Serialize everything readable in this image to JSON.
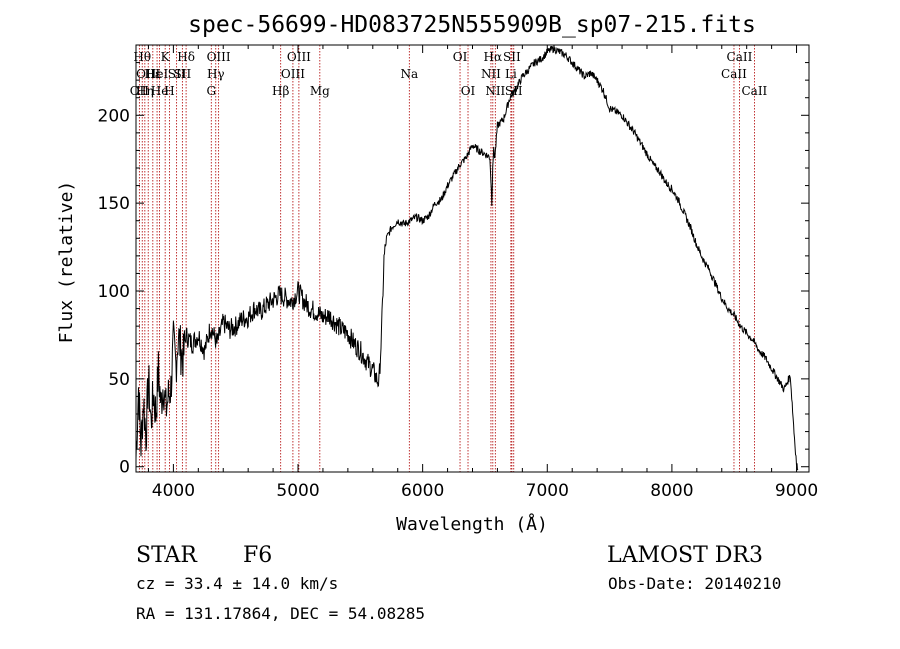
{
  "chart_data": {
    "type": "line",
    "title": "spec-56699-HD083725N555909B_sp07-215.fits",
    "xlabel": "Wavelength (Å)",
    "ylabel": "Flux (relative)",
    "xlim": [
      3700,
      9100
    ],
    "ylim": [
      -3,
      240
    ],
    "xticks": [
      4000,
      5000,
      6000,
      7000,
      8000,
      9000
    ],
    "yticks": [
      0,
      50,
      100,
      150,
      200
    ],
    "series": [
      {
        "name": "flux",
        "x": [
          3700,
          3720,
          3740,
          3760,
          3780,
          3800,
          3820,
          3840,
          3860,
          3880,
          3900,
          3920,
          3940,
          3960,
          3980,
          4000,
          4020,
          4040,
          4060,
          4080,
          4100,
          4150,
          4200,
          4250,
          4300,
          4350,
          4400,
          4450,
          4500,
          4550,
          4600,
          4650,
          4700,
          4750,
          4800,
          4850,
          4900,
          4950,
          5000,
          5050,
          5100,
          5150,
          5200,
          5250,
          5300,
          5350,
          5400,
          5450,
          5500,
          5550,
          5600,
          5630,
          5650,
          5670,
          5690,
          5710,
          5750,
          5800,
          5850,
          5900,
          5950,
          6000,
          6050,
          6100,
          6150,
          6200,
          6250,
          6300,
          6350,
          6400,
          6450,
          6500,
          6540,
          6555,
          6562,
          6570,
          6580,
          6600,
          6650,
          6700,
          6750,
          6800,
          6850,
          6900,
          6950,
          7000,
          7050,
          7100,
          7150,
          7200,
          7250,
          7300,
          7350,
          7400,
          7450,
          7500,
          7550,
          7600,
          7650,
          7700,
          7750,
          7800,
          7850,
          7900,
          7950,
          8000,
          8050,
          8100,
          8150,
          8200,
          8250,
          8300,
          8350,
          8400,
          8450,
          8500,
          8550,
          8600,
          8650,
          8700,
          8750,
          8800,
          8850,
          8900,
          8950,
          8980,
          9000,
          9010
        ],
        "y": [
          5,
          45,
          12,
          38,
          18,
          50,
          25,
          42,
          30,
          55,
          35,
          48,
          32,
          40,
          45,
          70,
          58,
          75,
          66,
          62,
          75,
          70,
          75,
          66,
          80,
          70,
          82,
          78,
          80,
          84,
          85,
          90,
          88,
          92,
          95,
          98,
          96,
          94,
          100,
          94,
          90,
          88,
          85,
          86,
          82,
          78,
          76,
          70,
          66,
          60,
          55,
          50,
          48,
          75,
          118,
          130,
          136,
          140,
          138,
          140,
          142,
          140,
          143,
          150,
          152,
          160,
          166,
          172,
          176,
          183,
          180,
          178,
          176,
          150,
          172,
          180,
          176,
          194,
          198,
          210,
          215,
          222,
          226,
          230,
          232,
          236,
          238,
          236,
          234,
          230,
          226,
          222,
          224,
          220,
          214,
          204,
          202,
          200,
          195,
          190,
          184,
          178,
          172,
          168,
          162,
          158,
          152,
          144,
          136,
          126,
          118,
          112,
          104,
          96,
          90,
          86,
          80,
          76,
          72,
          66,
          62,
          56,
          50,
          44,
          52,
          20,
          2,
          -2
        ]
      }
    ],
    "spectral_lines": [
      {
        "wavelength": 3727,
        "label": "OII",
        "row": 2
      },
      {
        "wavelength": 3750,
        "label": "Hθ",
        "row": 0
      },
      {
        "wavelength": 3771,
        "label": "Hη",
        "row": 2
      },
      {
        "wavelength": 3798,
        "label": "OIII",
        "row": 1
      },
      {
        "wavelength": 3835,
        "label": "Hε",
        "row": 1
      },
      {
        "wavelength": 3869,
        "label": "HeI",
        "row": 1
      },
      {
        "wavelength": 3889,
        "label": "He",
        "row": 2
      },
      {
        "wavelength": 3934,
        "label": "K",
        "row": 0
      },
      {
        "wavelength": 3969,
        "label": "H",
        "row": 2
      },
      {
        "wavelength": 4026,
        "label": "SII",
        "row": 1
      },
      {
        "wavelength": 4072,
        "label": "SII",
        "row": 1
      },
      {
        "wavelength": 4102,
        "label": "Hδ",
        "row": 0
      },
      {
        "wavelength": 4304,
        "label": "G",
        "row": 2
      },
      {
        "wavelength": 4340,
        "label": "Hγ",
        "row": 1
      },
      {
        "wavelength": 4363,
        "label": "OIII",
        "row": 0
      },
      {
        "wavelength": 4861,
        "label": "Hβ",
        "row": 2
      },
      {
        "wavelength": 4959,
        "label": "OIII",
        "row": 1
      },
      {
        "wavelength": 5007,
        "label": "OIII",
        "row": 0
      },
      {
        "wavelength": 5175,
        "label": "Mg",
        "row": 2
      },
      {
        "wavelength": 5893,
        "label": "Na",
        "row": 1
      },
      {
        "wavelength": 6300,
        "label": "OI",
        "row": 0
      },
      {
        "wavelength": 6364,
        "label": "OI",
        "row": 2
      },
      {
        "wavelength": 6548,
        "label": "NII",
        "row": 1
      },
      {
        "wavelength": 6563,
        "label": "Hα",
        "row": 0
      },
      {
        "wavelength": 6583,
        "label": "NII",
        "row": 2
      },
      {
        "wavelength": 6708,
        "label": "Li",
        "row": 1
      },
      {
        "wavelength": 6716,
        "label": "SII",
        "row": 0
      },
      {
        "wavelength": 6731,
        "label": "SII",
        "row": 2
      },
      {
        "wavelength": 8498,
        "label": "CaII",
        "row": 1
      },
      {
        "wavelength": 8542,
        "label": "CaII",
        "row": 0
      },
      {
        "wavelength": 8662,
        "label": "CaII",
        "row": 2
      }
    ],
    "line_color": "#b00000"
  },
  "info": {
    "class": "STAR",
    "subclass": "F6",
    "survey": "LAMOST DR3",
    "cz": "cz = 33.4 ± 14.0 km/s",
    "obs_date": "Obs-Date: 20140210",
    "radec": "RA = 131.17864, DEC =  54.08285"
  }
}
